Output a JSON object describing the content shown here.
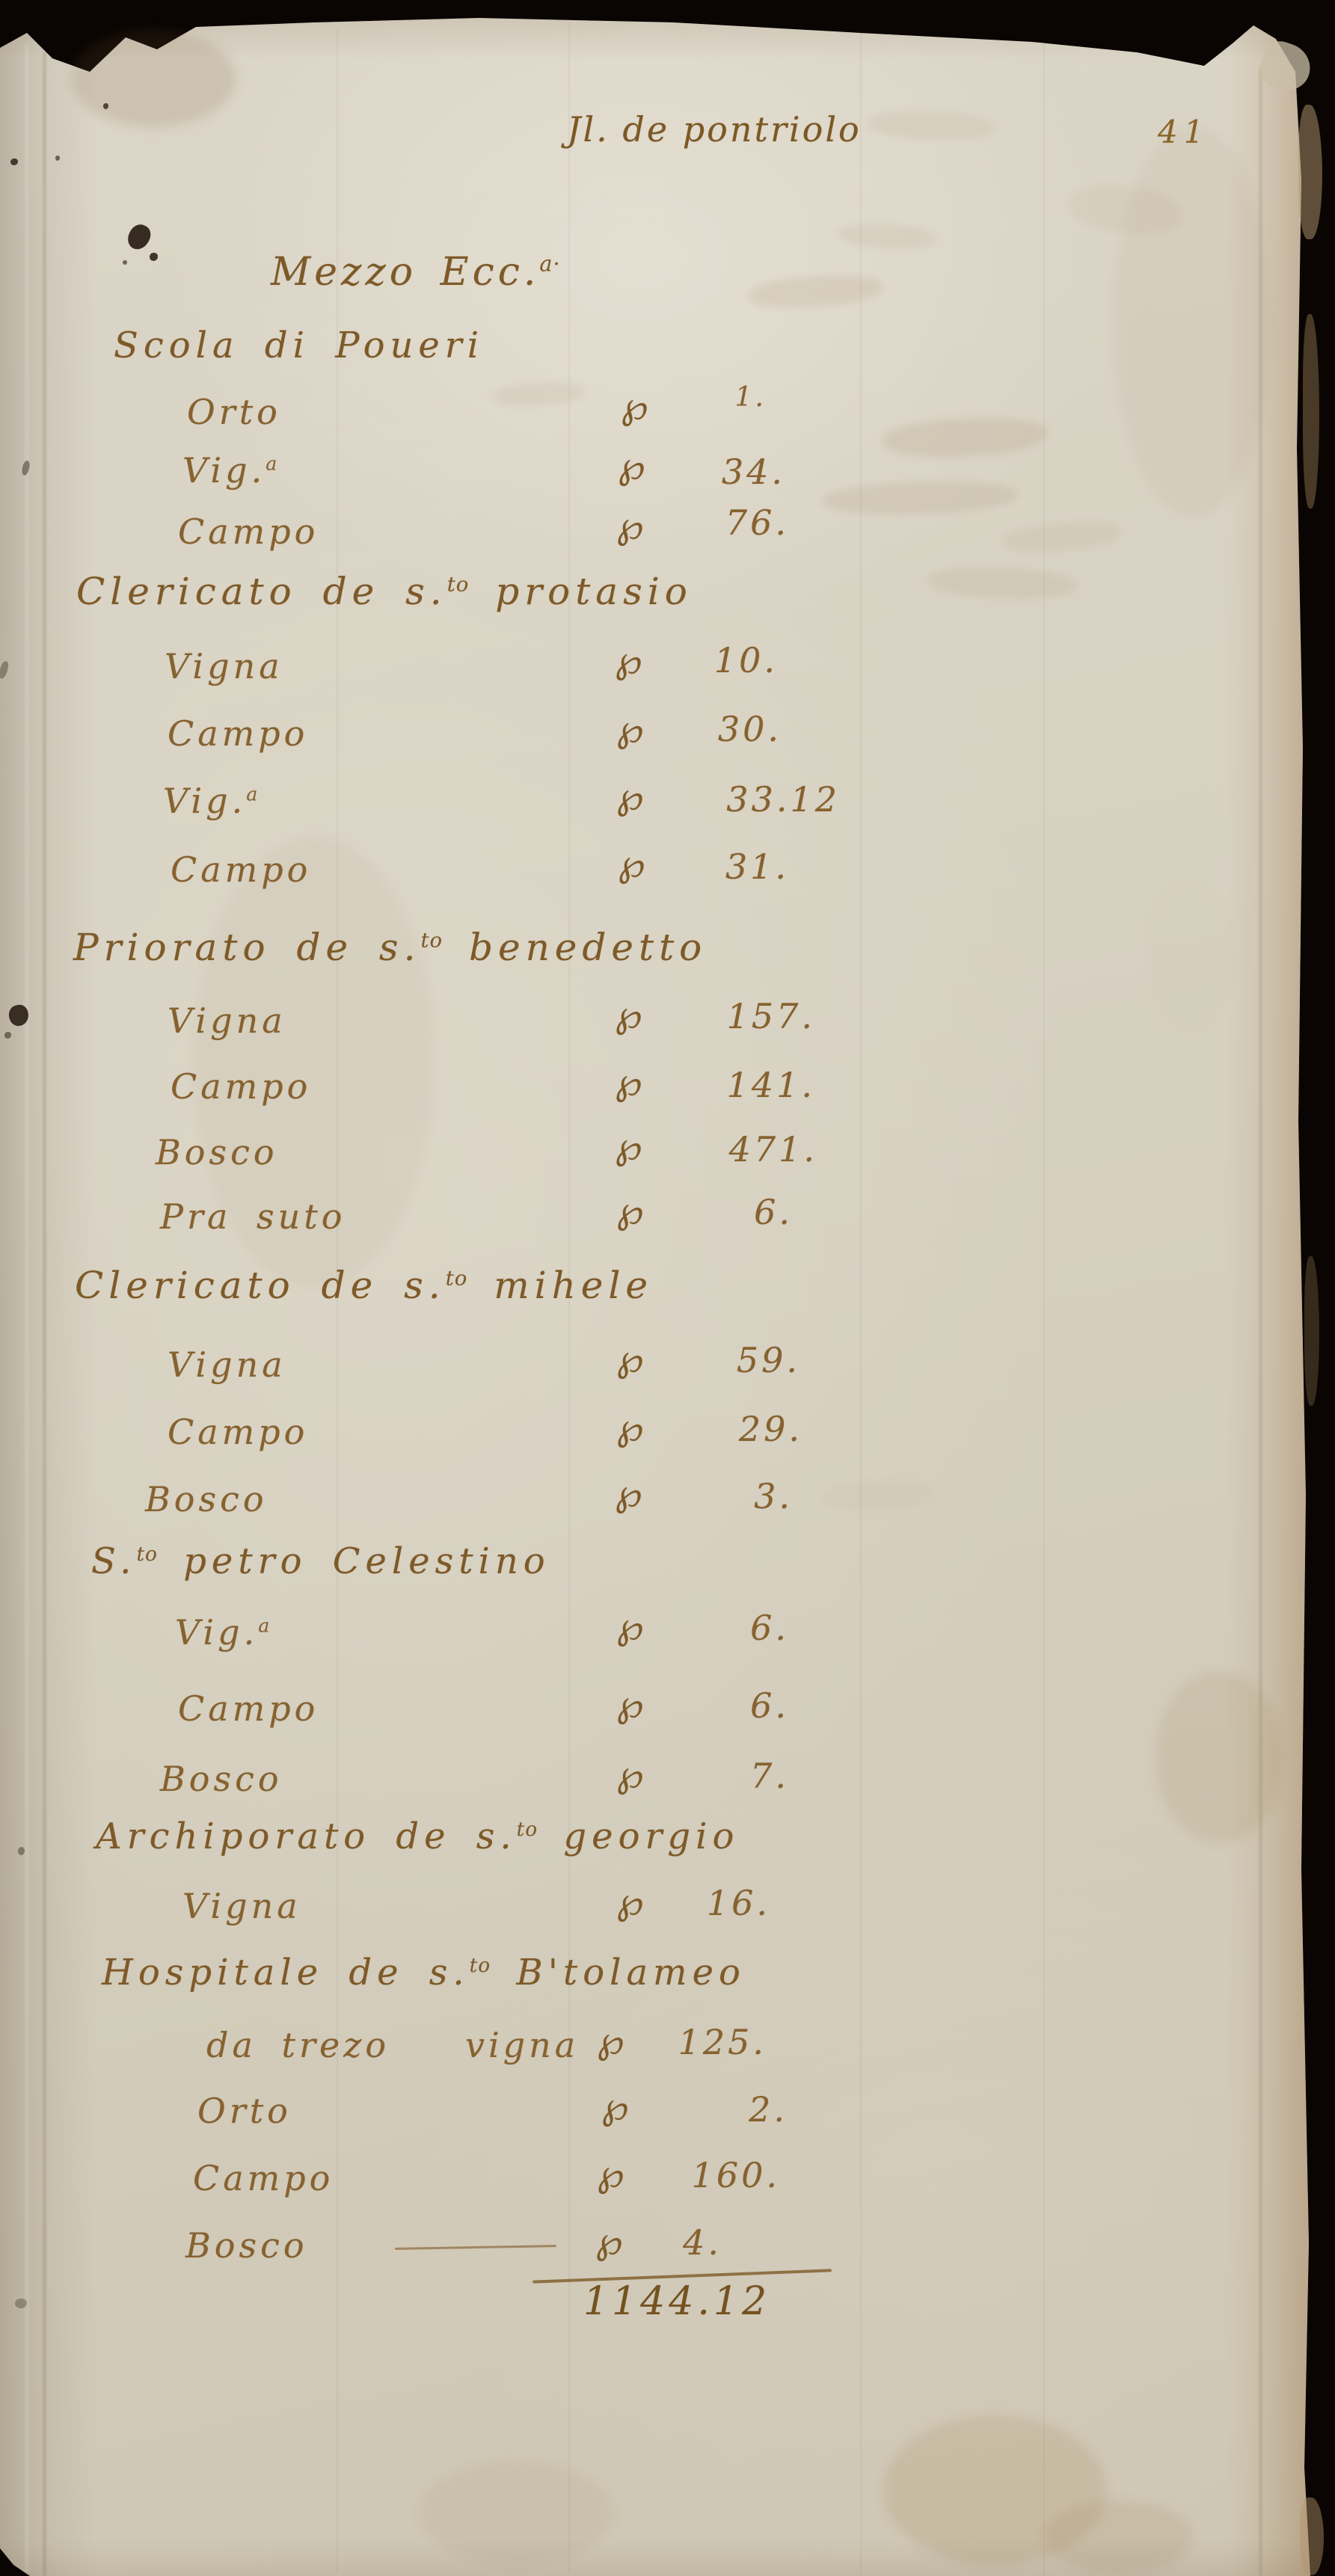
{
  "document": {
    "running_title": "Jl. de pontriolo",
    "folio_number": "41",
    "heading": "Mezzo Ecc.^a·^",
    "unit_symbol": "℘",
    "total": "1144.12"
  },
  "sections": [
    {
      "title": "Scola di Poueri",
      "rows": [
        {
          "label": "Orto",
          "value": "1."
        },
        {
          "label": "Vig.^a^",
          "value": "34."
        },
        {
          "label": "Campo",
          "value": "76."
        }
      ]
    },
    {
      "title": "Clericato de s.^to^ protasio",
      "rows": [
        {
          "label": "Vigna",
          "value": "10."
        },
        {
          "label": "Campo",
          "value": "30."
        },
        {
          "label": "Vig.^a^",
          "value": "33.12"
        },
        {
          "label": "Campo",
          "value": "31."
        }
      ]
    },
    {
      "title": "Priorato de s.^to^ benedetto",
      "rows": [
        {
          "label": "Vigna",
          "value": "157."
        },
        {
          "label": "Campo",
          "value": "141."
        },
        {
          "label": "Bosco",
          "value": "471."
        },
        {
          "label": "Pra suto",
          "value": "6."
        }
      ]
    },
    {
      "title": "Clericato de s.^to^ mihele",
      "rows": [
        {
          "label": "Vigna",
          "value": "59."
        },
        {
          "label": "Campo",
          "value": "29."
        },
        {
          "label": "Bosco",
          "value": "3."
        }
      ]
    },
    {
      "title": "S.^to^ petro Celestino",
      "rows": [
        {
          "label": "Vig.^a^",
          "value": "6."
        },
        {
          "label": "Campo",
          "value": "6."
        },
        {
          "label": "Bosco",
          "value": "7."
        }
      ]
    },
    {
      "title": "Archiporato de s.^to^ georgio",
      "rows": [
        {
          "label": "Vigna",
          "value": "16."
        }
      ]
    },
    {
      "title": "Hospitale de s.^to^ B'tolameo",
      "rows": [
        {
          "label": "da trezo   vigna",
          "value": "125."
        },
        {
          "label": "Orto",
          "value": "2."
        },
        {
          "label": "Campo",
          "value": "160."
        },
        {
          "label": "Bosco",
          "value": "4.",
          "leader_dash": true
        }
      ]
    }
  ]
}
